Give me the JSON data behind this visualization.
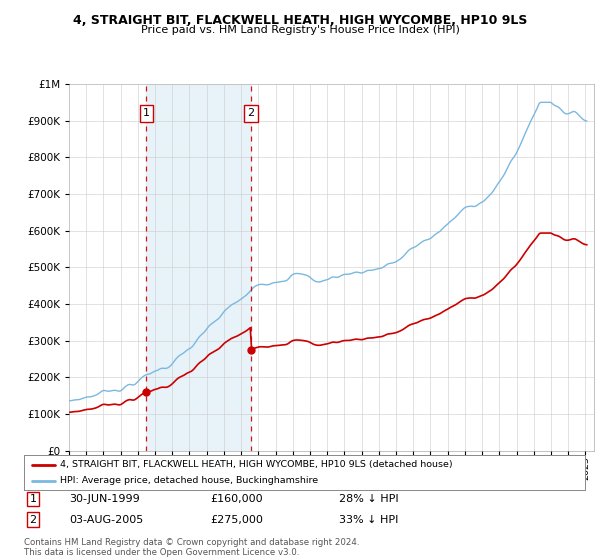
{
  "title": "4, STRAIGHT BIT, FLACKWELL HEATH, HIGH WYCOMBE, HP10 9LS",
  "subtitle": "Price paid vs. HM Land Registry's House Price Index (HPI)",
  "legend_line1": "4, STRAIGHT BIT, FLACKWELL HEATH, HIGH WYCOMBE, HP10 9LS (detached house)",
  "legend_line2": "HPI: Average price, detached house, Buckinghamshire",
  "annotation1_date": "30-JUN-1999",
  "annotation1_price": "£160,000",
  "annotation1_hpi": "28% ↓ HPI",
  "annotation2_date": "03-AUG-2005",
  "annotation2_price": "£275,000",
  "annotation2_hpi": "33% ↓ HPI",
  "footnote": "Contains HM Land Registry data © Crown copyright and database right 2024.\nThis data is licensed under the Open Government Licence v3.0.",
  "sale1_year": 1999.5,
  "sale1_value": 160000,
  "sale2_year": 2005.58,
  "sale2_value": 275000,
  "hpi_color": "#7ab8e0",
  "hpi_fill_color": "#daeaf5",
  "price_color": "#cc0000",
  "annotation_box_color": "#cc0000",
  "ylim_max": 1000000,
  "xlim_min": 1995.0,
  "xlim_max": 2025.5,
  "background_color": "#ffffff",
  "grid_color": "#cccccc"
}
